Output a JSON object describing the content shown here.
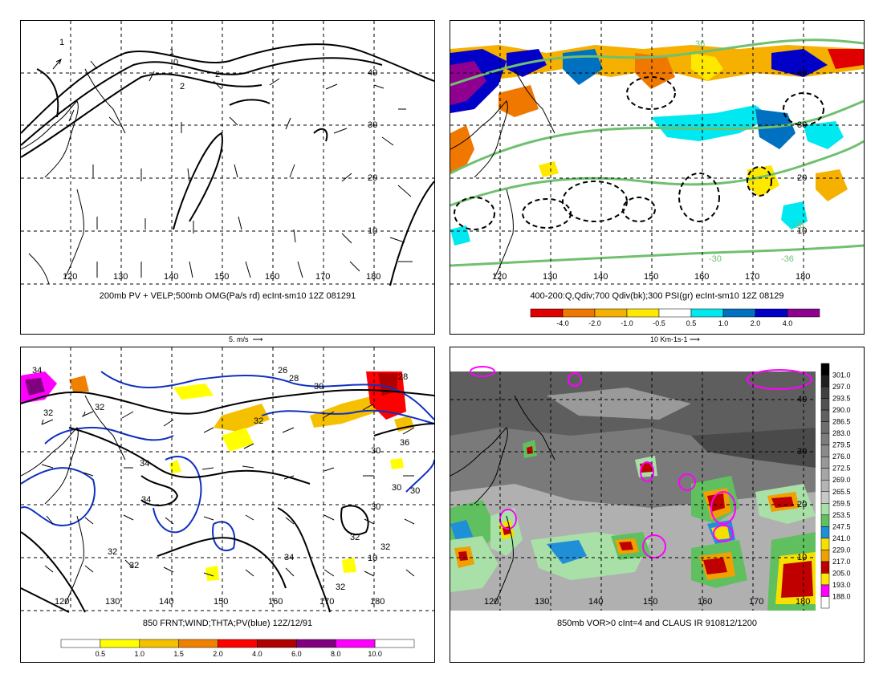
{
  "panels": [
    {
      "id": "p1",
      "caption": "200mb PV + VELP;500mb OMG(Pa/s rd) ecInt-sm10 12Z 081291",
      "lon_labels": [
        "120",
        "130",
        "140",
        "150",
        "160",
        "170",
        "180"
      ],
      "lat_labels": [
        "40",
        "30",
        "20",
        "10"
      ],
      "contour_labels": [
        "1",
        "1",
        "0",
        "2",
        "2"
      ],
      "vector_scale_label": "5. m/s"
    },
    {
      "id": "p2",
      "caption": "400-200:Q,Qdiv;700 Qdiv(bk);300 PSI(gr) ecInt-sm10 12Z 08129",
      "lon_labels": [
        "120",
        "130",
        "140",
        "150",
        "160",
        "170",
        "180"
      ],
      "lat_labels": [
        "40",
        "30",
        "20",
        "10"
      ],
      "contour_labels": [
        "36",
        "-36",
        "-30",
        "-36"
      ],
      "colorbar": {
        "labels": [
          "-4.0",
          "-2.0",
          "-1.0",
          "-0.5",
          "0.5",
          "1.0",
          "2.0",
          "4.0"
        ],
        "colors": [
          "#e00000",
          "#f07800",
          "#f5b000",
          "#ffe800",
          "#ffffff",
          "#00e8f0",
          "#0070c0",
          "#0000c8",
          "#900090"
        ]
      },
      "vector_scale_label": "10 Km-1s-1"
    },
    {
      "id": "p3",
      "caption": "850 FRNT;WIND;THTA;PV(blue) 12Z/12/91",
      "lon_labels": [
        "120",
        "130",
        "140",
        "150",
        "160",
        "170",
        "180"
      ],
      "lat_labels": [
        "10"
      ],
      "contour_labels": [
        "34",
        "32",
        "32",
        "26",
        "28",
        "30",
        "32",
        "34",
        "34",
        "36",
        "30",
        "30",
        "30",
        "30",
        "32",
        "32",
        "32",
        "34",
        "32",
        "32",
        "28"
      ],
      "colorbar": {
        "labels": [
          "0.5",
          "1.0",
          "1.5",
          "2.0",
          "4.0",
          "6.0",
          "8.0",
          "10.0"
        ],
        "colors": [
          "#ffffff",
          "#ffff00",
          "#f5c000",
          "#f08000",
          "#ff0000",
          "#b00000",
          "#800080",
          "#ff00ff",
          "#ffffff"
        ]
      }
    },
    {
      "id": "p4",
      "caption": "850mb VOR>0 cInt=4 and CLAUS IR 910812/1200",
      "lon_labels": [
        "120",
        "130",
        "140",
        "150",
        "160",
        "170",
        "180"
      ],
      "lat_labels": [
        "40",
        "30",
        "20",
        "10"
      ],
      "colorbar": {
        "labels": [
          "301.0",
          "297.0",
          "293.5",
          "290.0",
          "286.5",
          "283.0",
          "279.5",
          "276.0",
          "272.5",
          "269.0",
          "265.5",
          "259.5",
          "253.5",
          "247.5",
          "241.0",
          "229.0",
          "217.0",
          "205.0",
          "193.0",
          "188.0"
        ],
        "colors": [
          "#000000",
          "#202020",
          "#404040",
          "#505050",
          "#606060",
          "#6e6e6e",
          "#7c7c7c",
          "#8a8a8a",
          "#989898",
          "#a6a6a6",
          "#b4b4b4",
          "#c8c8c8",
          "#a8e0a8",
          "#60c060",
          "#1f8fd8",
          "#f5e000",
          "#f0a000",
          "#c00000",
          "#ffe800",
          "#ff00ff",
          "#ffffff"
        ]
      }
    }
  ]
}
